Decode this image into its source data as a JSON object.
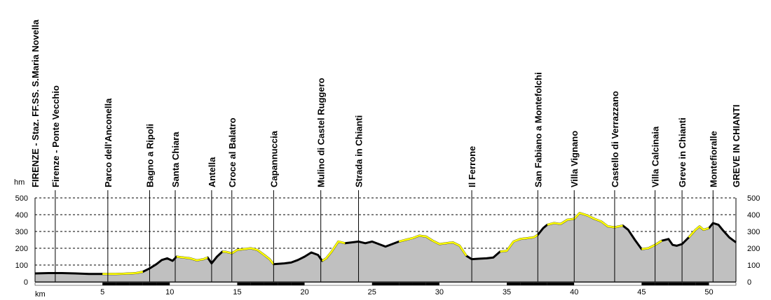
{
  "chart_data": {
    "type": "area",
    "xlabel": "km",
    "ylabel": "hm",
    "xlim": [
      0,
      52
    ],
    "ylim": [
      0,
      500
    ],
    "x_ticks": [
      5,
      10,
      15,
      20,
      25,
      30,
      35,
      40,
      45,
      50
    ],
    "y_ticks": [
      0,
      100,
      200,
      300,
      400,
      500
    ],
    "grid": "horizontal dashed",
    "colors": {
      "fill": "#c0c0c0",
      "line": "#000000",
      "highlight": "#ffff00",
      "accent": "#2e8b2e"
    },
    "places": [
      {
        "name": "FIRENZE - Staz. FF.SS. S.Maria Novella",
        "km": 0.0
      },
      {
        "name": "Firenze - Ponte Vecchio",
        "km": 1.5
      },
      {
        "name": "Parco dell'Anconella",
        "km": 5.4
      },
      {
        "name": "Bagno a Ripoli",
        "km": 8.5
      },
      {
        "name": "Santa Chiara",
        "km": 10.4
      },
      {
        "name": "Antella",
        "km": 13.1
      },
      {
        "name": "Croce al Balatro",
        "km": 14.6
      },
      {
        "name": "Capannuccia",
        "km": 17.7
      },
      {
        "name": "Mulino di Castel Ruggero",
        "km": 21.2
      },
      {
        "name": "Strada in Chianti",
        "km": 24.0
      },
      {
        "name": "Il Ferrone",
        "km": 32.4
      },
      {
        "name": "San Fabiano a Montefolchi",
        "km": 37.3
      },
      {
        "name": "Villa Vignano",
        "km": 40.0
      },
      {
        "name": "Castello di Verrazzano",
        "km": 43.0
      },
      {
        "name": "Villa Calcinaia",
        "km": 46.0
      },
      {
        "name": "Greve in Chianti",
        "km": 48.0
      },
      {
        "name": "Montefioralle",
        "km": 50.3
      },
      {
        "name": "GREVE IN CHIANTI",
        "km": 52.0
      }
    ],
    "profile": [
      [
        0,
        50
      ],
      [
        1,
        52
      ],
      [
        2,
        52
      ],
      [
        3,
        50
      ],
      [
        4,
        47
      ],
      [
        5,
        47
      ],
      [
        5.5,
        47
      ],
      [
        6,
        47
      ],
      [
        6.5,
        48
      ],
      [
        7,
        50
      ],
      [
        7.5,
        52
      ],
      [
        8,
        60
      ],
      [
        8.5,
        80
      ],
      [
        9,
        105
      ],
      [
        9.4,
        130
      ],
      [
        9.8,
        140
      ],
      [
        10.2,
        125
      ],
      [
        10.5,
        150
      ],
      [
        11,
        145
      ],
      [
        11.5,
        140
      ],
      [
        12,
        128
      ],
      [
        12.5,
        135
      ],
      [
        12.8,
        145
      ],
      [
        13.1,
        110
      ],
      [
        13.5,
        150
      ],
      [
        13.9,
        180
      ],
      [
        14.2,
        178
      ],
      [
        14.6,
        170
      ],
      [
        15,
        190
      ],
      [
        15.5,
        195
      ],
      [
        16,
        200
      ],
      [
        16.5,
        190
      ],
      [
        17,
        160
      ],
      [
        17.4,
        135
      ],
      [
        17.7,
        105
      ],
      [
        18.5,
        110
      ],
      [
        19,
        115
      ],
      [
        19.5,
        130
      ],
      [
        20,
        150
      ],
      [
        20.5,
        175
      ],
      [
        21,
        160
      ],
      [
        21.3,
        125
      ],
      [
        21.6,
        140
      ],
      [
        22,
        180
      ],
      [
        22.5,
        240
      ],
      [
        23,
        230
      ],
      [
        23.5,
        235
      ],
      [
        24,
        240
      ],
      [
        24.5,
        230
      ],
      [
        25,
        240
      ],
      [
        25.5,
        225
      ],
      [
        26,
        210
      ],
      [
        26.5,
        225
      ],
      [
        27,
        240
      ],
      [
        27.5,
        250
      ],
      [
        28,
        260
      ],
      [
        28.5,
        275
      ],
      [
        29,
        270
      ],
      [
        29.5,
        245
      ],
      [
        30,
        225
      ],
      [
        30.5,
        230
      ],
      [
        31,
        235
      ],
      [
        31.5,
        215
      ],
      [
        32,
        155
      ],
      [
        32.4,
        135
      ],
      [
        33,
        138
      ],
      [
        33.5,
        140
      ],
      [
        34,
        145
      ],
      [
        34.5,
        180
      ],
      [
        35,
        185
      ],
      [
        35.5,
        240
      ],
      [
        36,
        255
      ],
      [
        36.5,
        260
      ],
      [
        37,
        265
      ],
      [
        37.3,
        280
      ],
      [
        37.7,
        320
      ],
      [
        38,
        340
      ],
      [
        38.5,
        350
      ],
      [
        39,
        345
      ],
      [
        39.5,
        370
      ],
      [
        40,
        375
      ],
      [
        40.4,
        410
      ],
      [
        41,
        395
      ],
      [
        41.5,
        375
      ],
      [
        42,
        360
      ],
      [
        42.5,
        330
      ],
      [
        43,
        325
      ],
      [
        43.6,
        335
      ],
      [
        44,
        310
      ],
      [
        44.5,
        250
      ],
      [
        45,
        195
      ],
      [
        45.5,
        200
      ],
      [
        46,
        220
      ],
      [
        46.5,
        245
      ],
      [
        47,
        255
      ],
      [
        47.3,
        220
      ],
      [
        47.6,
        215
      ],
      [
        48,
        225
      ],
      [
        48.5,
        265
      ],
      [
        49,
        310
      ],
      [
        49.3,
        330
      ],
      [
        49.6,
        310
      ],
      [
        50,
        320
      ],
      [
        50.3,
        350
      ],
      [
        50.7,
        340
      ],
      [
        51,
        310
      ],
      [
        51.5,
        265
      ],
      [
        52,
        235
      ]
    ]
  }
}
